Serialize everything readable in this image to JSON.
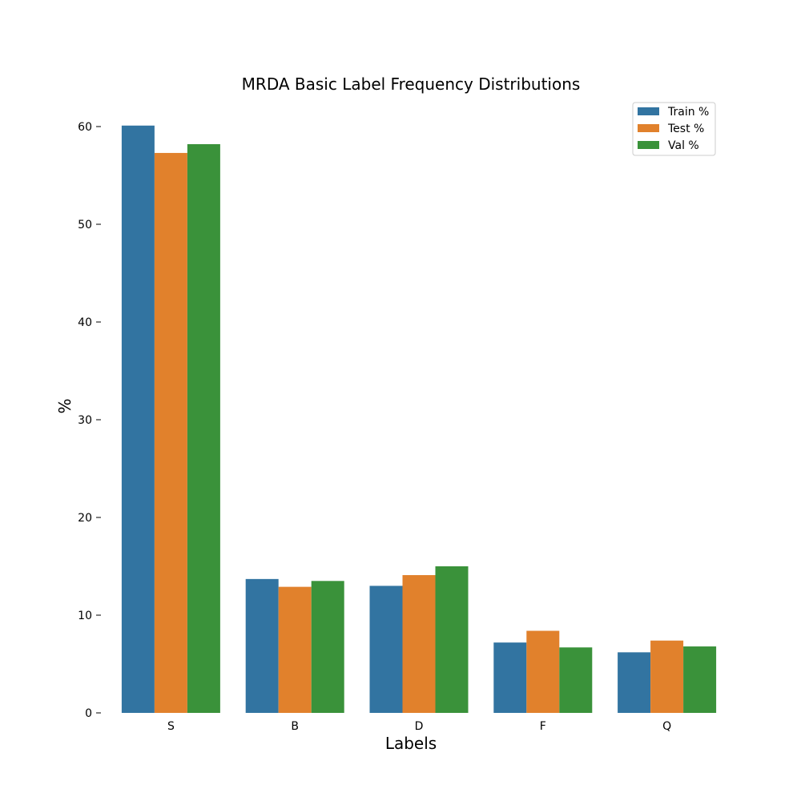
{
  "chart_data": {
    "type": "bar",
    "title": "MRDA Basic Label Frequency Distributions",
    "xlabel": "Labels",
    "ylabel": "%",
    "categories": [
      "S",
      "B",
      "D",
      "F",
      "Q"
    ],
    "series": [
      {
        "name": "Train %",
        "color": "#3274a1",
        "values": [
          60.1,
          13.7,
          13.0,
          7.2,
          6.2
        ]
      },
      {
        "name": "Test %",
        "color": "#e1812c",
        "values": [
          57.3,
          12.9,
          14.1,
          8.4,
          7.4
        ]
      },
      {
        "name": "Val %",
        "color": "#3a923a",
        "values": [
          58.2,
          13.5,
          15.0,
          6.7,
          6.8
        ]
      }
    ],
    "ylim": [
      0,
      60
    ],
    "yticks": [
      0,
      10,
      20,
      30,
      40,
      50,
      60
    ],
    "grid": false,
    "legend": "top-right"
  }
}
